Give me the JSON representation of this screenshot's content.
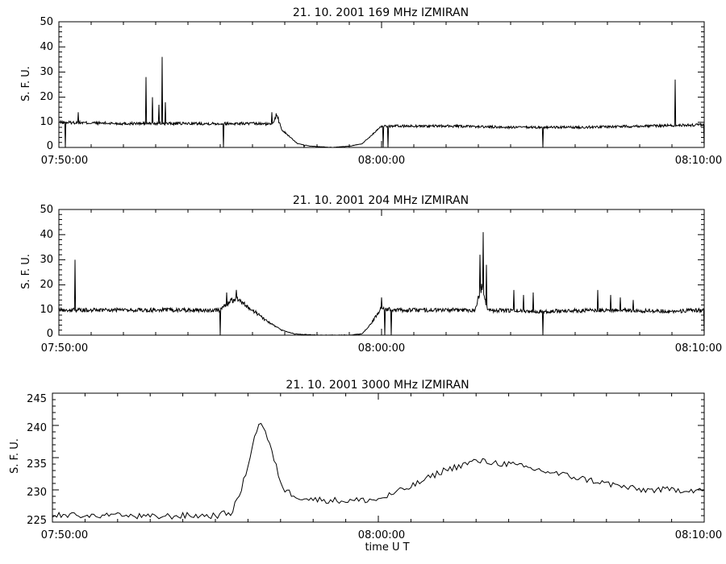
{
  "colors": {
    "background": "#ffffff",
    "trace": "#000000"
  },
  "chart_data": [
    {
      "type": "line",
      "title": "21. 10. 2001   169 MHz   IZMIRAN",
      "ylabel": "S. F. U.",
      "xlabel": "",
      "xlim": [
        "07:50:00",
        "08:10:00"
      ],
      "ylim": [
        0,
        50
      ],
      "yticks": [
        "0",
        "10",
        "20",
        "30",
        "40",
        "50"
      ],
      "xticks": [
        "07:50:00",
        "08:00:00",
        "08:10:00"
      ],
      "grid": false,
      "series": [
        {
          "x_unit": "minutes from 07:50:00",
          "keypoints": [
            [
              0,
              10
            ],
            [
              2,
              9.5
            ],
            [
              4,
              9.5
            ],
            [
              5.2,
              9.5
            ],
            [
              6,
              9.5
            ],
            [
              6.7,
              9.2
            ],
            [
              7.0,
              6
            ],
            [
              7.4,
              1.5
            ],
            [
              7.8,
              0.5
            ],
            [
              8.5,
              0
            ],
            [
              9.0,
              0.5
            ],
            [
              9.4,
              1.5
            ],
            [
              9.7,
              5
            ],
            [
              10.0,
              8.5
            ],
            [
              10.4,
              8.5
            ],
            [
              12,
              8.5
            ],
            [
              14,
              8
            ],
            [
              16,
              8
            ],
            [
              18,
              8.5
            ],
            [
              20,
              9
            ]
          ],
          "spikes": [
            [
              0.6,
              14
            ],
            [
              2.7,
              28
            ],
            [
              2.9,
              20
            ],
            [
              3.1,
              17
            ],
            [
              3.2,
              36
            ],
            [
              3.3,
              18
            ],
            [
              6.6,
              14
            ],
            [
              7.6,
              0.2
            ],
            [
              19.1,
              27
            ]
          ],
          "dips": [
            [
              0.2,
              0
            ],
            [
              5.1,
              0
            ],
            [
              10.05,
              0
            ],
            [
              10.2,
              0
            ],
            [
              15.0,
              0
            ],
            [
              20.0,
              0
            ]
          ],
          "humps": [
            [
              6.6,
              6.9,
              14
            ]
          ],
          "noise": 0.6
        }
      ]
    },
    {
      "type": "line",
      "title": "21. 10. 2001   204 MHz   IZMIRAN",
      "ylabel": "S. F. U.",
      "xlabel": "",
      "xlim": [
        "07:50:00",
        "08:10:00"
      ],
      "ylim": [
        0,
        50
      ],
      "yticks": [
        "0",
        "10",
        "20",
        "30",
        "40",
        "50"
      ],
      "xticks": [
        "07:50:00",
        "08:00:00",
        "08:10:00"
      ],
      "grid": false,
      "series": [
        {
          "x_unit": "minutes from 07:50:00",
          "keypoints": [
            [
              0,
              10
            ],
            [
              2,
              10
            ],
            [
              4,
              10
            ],
            [
              5.0,
              10
            ],
            [
              5.3,
              13
            ],
            [
              5.7,
              12
            ],
            [
              6.0,
              10
            ],
            [
              6.4,
              6
            ],
            [
              6.9,
              2
            ],
            [
              7.3,
              0.5
            ],
            [
              8,
              0
            ],
            [
              9,
              0
            ],
            [
              9.4,
              0.5
            ],
            [
              9.7,
              5
            ],
            [
              10.0,
              11
            ],
            [
              10.3,
              10
            ],
            [
              11,
              10
            ],
            [
              13,
              10
            ],
            [
              15,
              9.5
            ],
            [
              17,
              10
            ],
            [
              19,
              9.5
            ],
            [
              20,
              10
            ]
          ],
          "spikes": [
            [
              0.5,
              30
            ],
            [
              5.2,
              17
            ],
            [
              5.5,
              18
            ],
            [
              10.0,
              15
            ],
            [
              13.05,
              32
            ],
            [
              13.15,
              41
            ],
            [
              13.25,
              28
            ],
            [
              14.1,
              18
            ],
            [
              14.4,
              16
            ],
            [
              14.7,
              17
            ],
            [
              16.7,
              18
            ],
            [
              17.1,
              16
            ],
            [
              17.4,
              15
            ],
            [
              17.8,
              14
            ]
          ],
          "dips": [
            [
              5.0,
              0
            ],
            [
              10.1,
              0
            ],
            [
              10.3,
              0
            ],
            [
              15.0,
              0
            ],
            [
              20.0,
              0
            ]
          ],
          "humps": [
            [
              5.2,
              5.8,
              15
            ],
            [
              12.9,
              13.3,
              22
            ]
          ],
          "noise": 0.8
        }
      ]
    },
    {
      "type": "line",
      "title": "21. 10. 2001   3000 MHz   IZMIRAN",
      "ylabel": "S. F. U.",
      "xlabel": "time  U T",
      "xlim": [
        "07:50:00",
        "08:10:00"
      ],
      "ylim": [
        225,
        245
      ],
      "yticks": [
        "225",
        "230",
        "235",
        "240",
        "245"
      ],
      "xticks": [
        "07:50:00",
        "08:00:00",
        "08:10:00"
      ],
      "grid": false,
      "series": [
        {
          "x_unit": "minutes from 07:50:00",
          "keypoints": [
            [
              0,
              226
            ],
            [
              1,
              226
            ],
            [
              2,
              226
            ],
            [
              3,
              225.8
            ],
            [
              4,
              226
            ],
            [
              5,
              226
            ],
            [
              5.5,
              226.5
            ],
            [
              5.8,
              230
            ],
            [
              6.1,
              236
            ],
            [
              6.3,
              240
            ],
            [
              6.4,
              240.5
            ],
            [
              6.6,
              238
            ],
            [
              6.9,
              233
            ],
            [
              7.1,
              230
            ],
            [
              7.5,
              229
            ],
            [
              8,
              228.5
            ],
            [
              9,
              228.3
            ],
            [
              10,
              228.5
            ],
            [
              10.5,
              229.5
            ],
            [
              11,
              230.5
            ],
            [
              12,
              233
            ],
            [
              13,
              234.5
            ],
            [
              14,
              234
            ],
            [
              15,
              233
            ],
            [
              16,
              232
            ],
            [
              17,
              231
            ],
            [
              18,
              230
            ],
            [
              19,
              230
            ],
            [
              20,
              230
            ]
          ],
          "spikes": [],
          "dips": [],
          "humps": [],
          "noise": 0.5
        }
      ]
    }
  ]
}
